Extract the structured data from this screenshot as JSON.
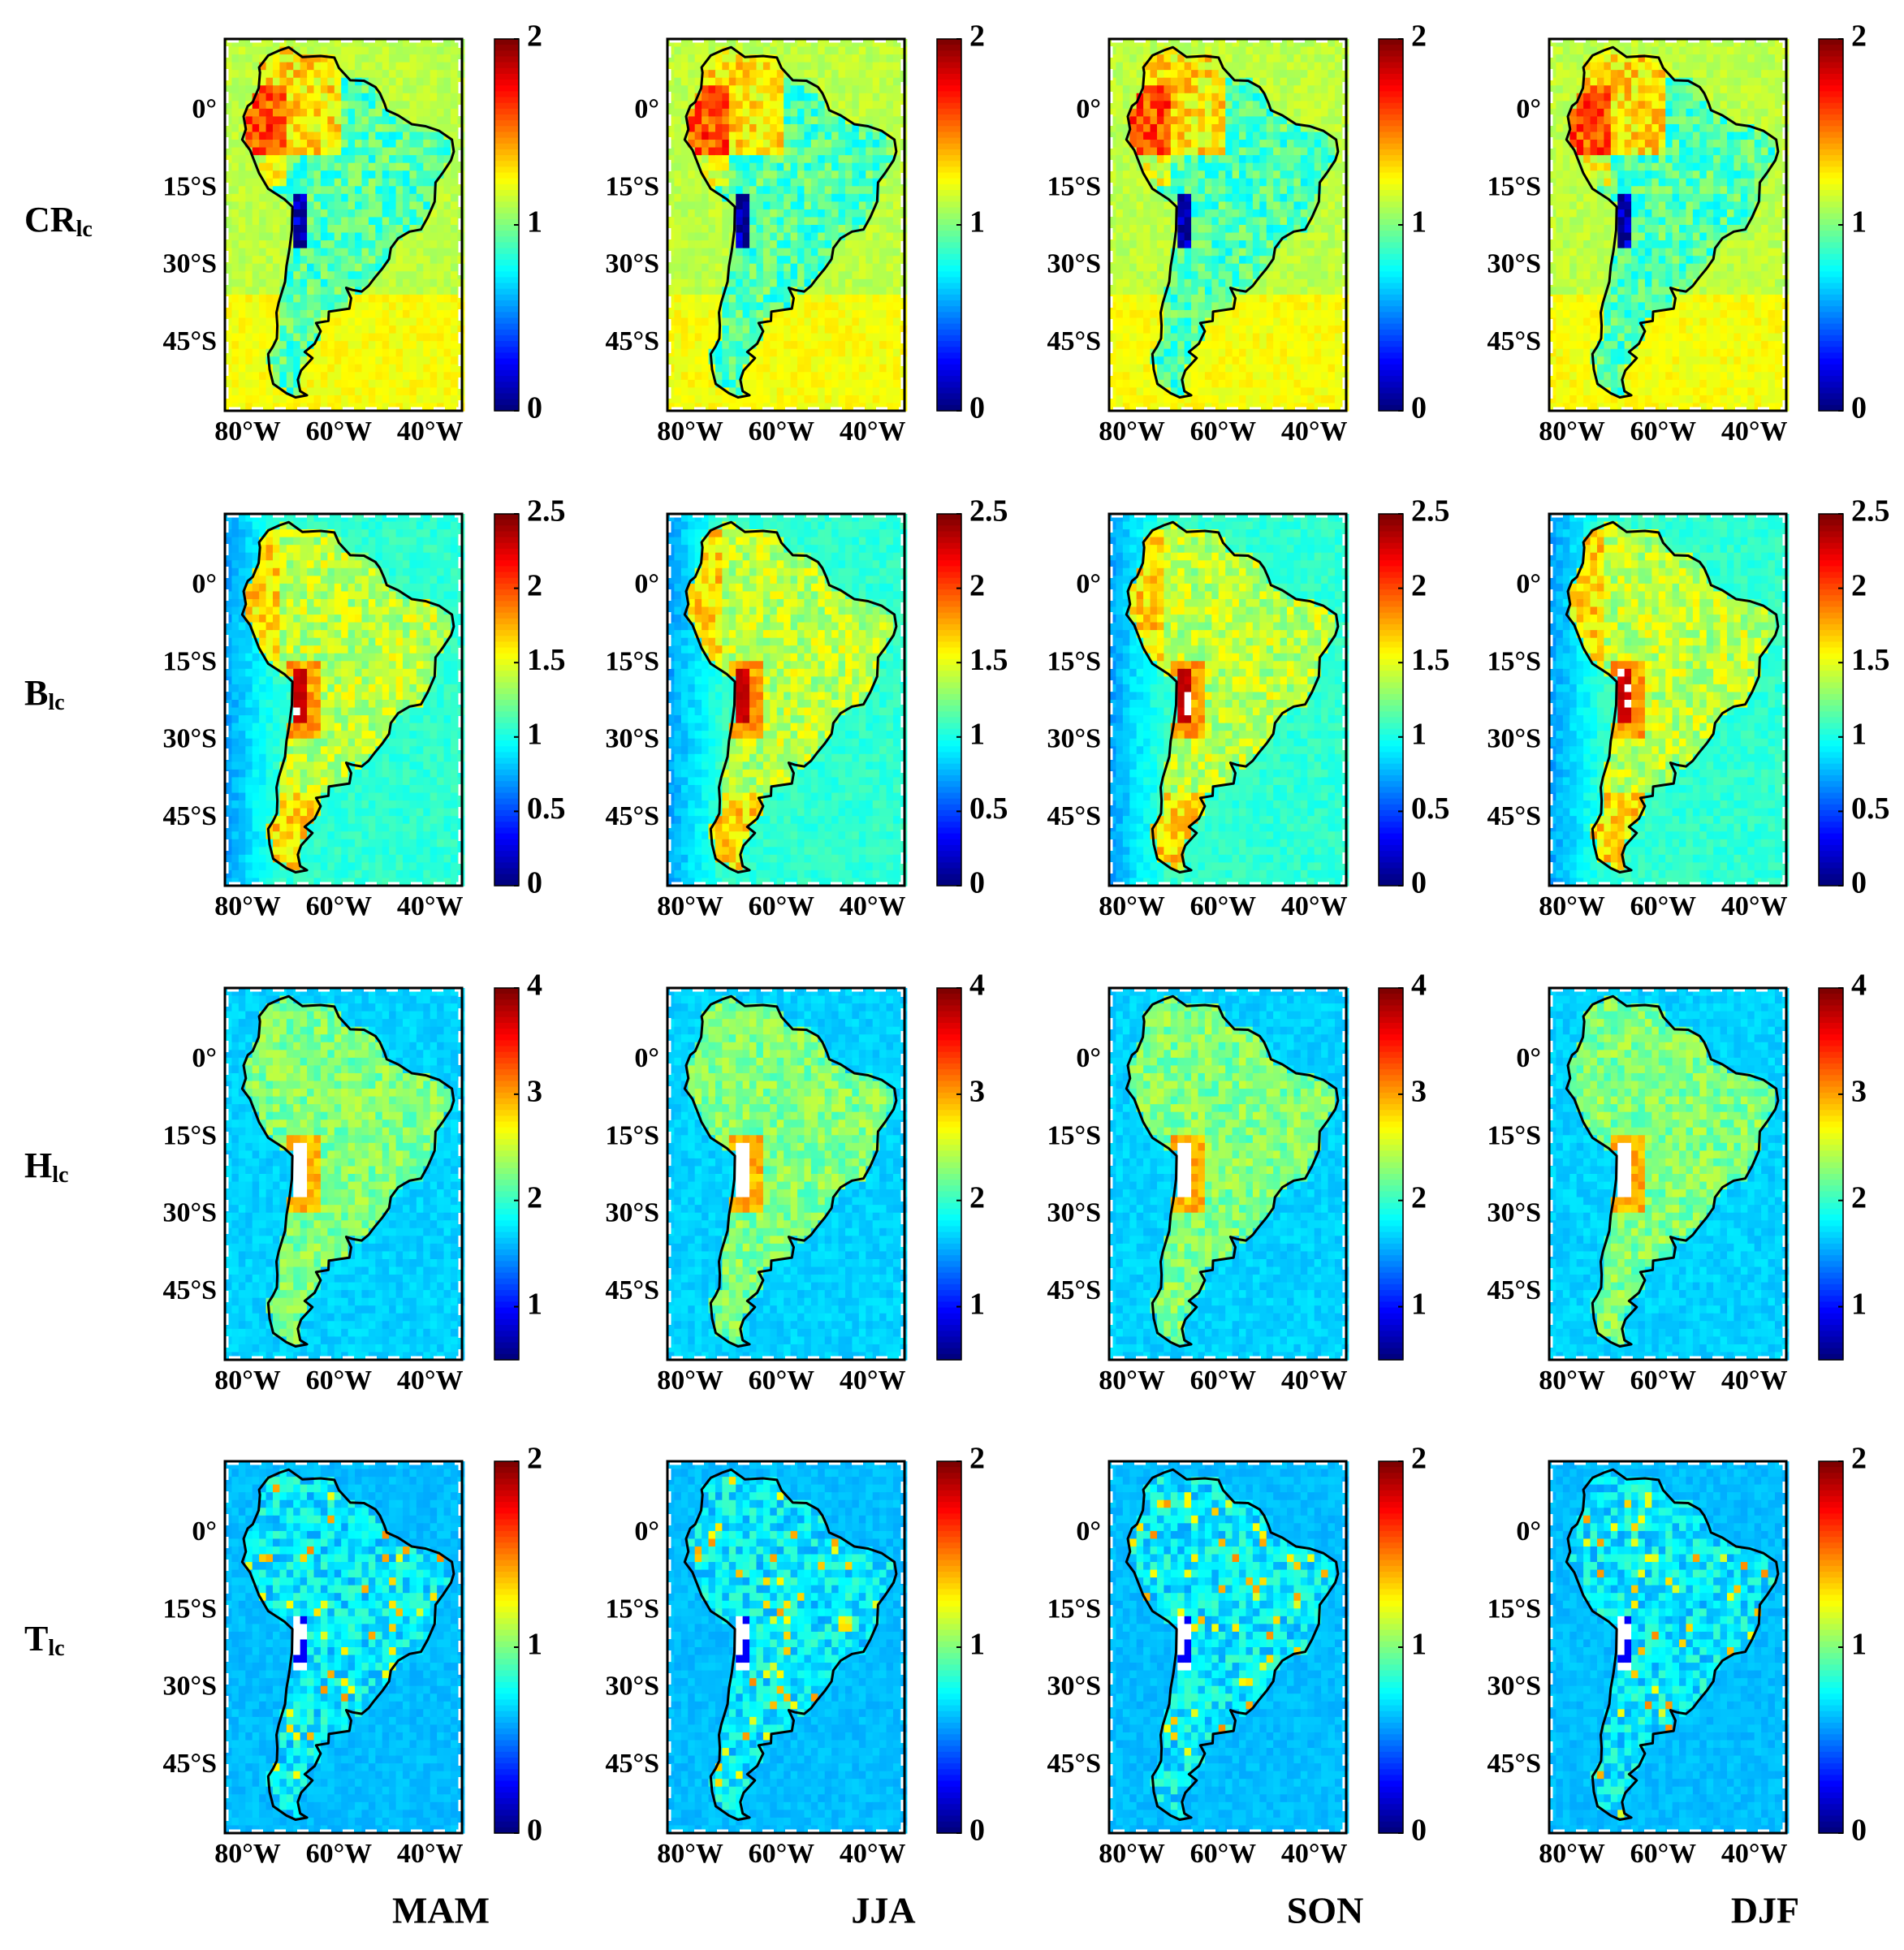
{
  "figure": {
    "rows": [
      {
        "label_main": "CR",
        "label_sub": "lc",
        "colorbar": {
          "min": 0,
          "max": 2,
          "ticks": [
            "0",
            "1",
            "2"
          ]
        }
      },
      {
        "label_main": "B",
        "label_sub": "lc",
        "colorbar": {
          "min": 0,
          "max": 2.5,
          "ticks": [
            "0",
            "0.5",
            "1",
            "1.5",
            "2",
            "2.5"
          ]
        }
      },
      {
        "label_main": "H",
        "label_sub": "lc",
        "colorbar": {
          "min": 0.5,
          "max": 4,
          "ticks": [
            "1",
            "2",
            "3",
            "4"
          ]
        }
      },
      {
        "label_main": "T",
        "label_sub": "lc",
        "colorbar": {
          "min": 0,
          "max": 2,
          "ticks": [
            "0",
            "1",
            "2"
          ]
        }
      }
    ],
    "columns": [
      "MAM",
      "JJA",
      "SON",
      "DJF"
    ],
    "lat_labels": [
      "0°",
      "15°S",
      "30°S",
      "45°S"
    ],
    "lon_labels": [
      "80°W",
      "60°W",
      "40°W"
    ],
    "map_extent": {
      "lon_min": -85,
      "lon_max": -33,
      "lat_min": -58,
      "lat_max": 14
    },
    "colormap": "jet",
    "coastline_color": "#000000"
  }
}
